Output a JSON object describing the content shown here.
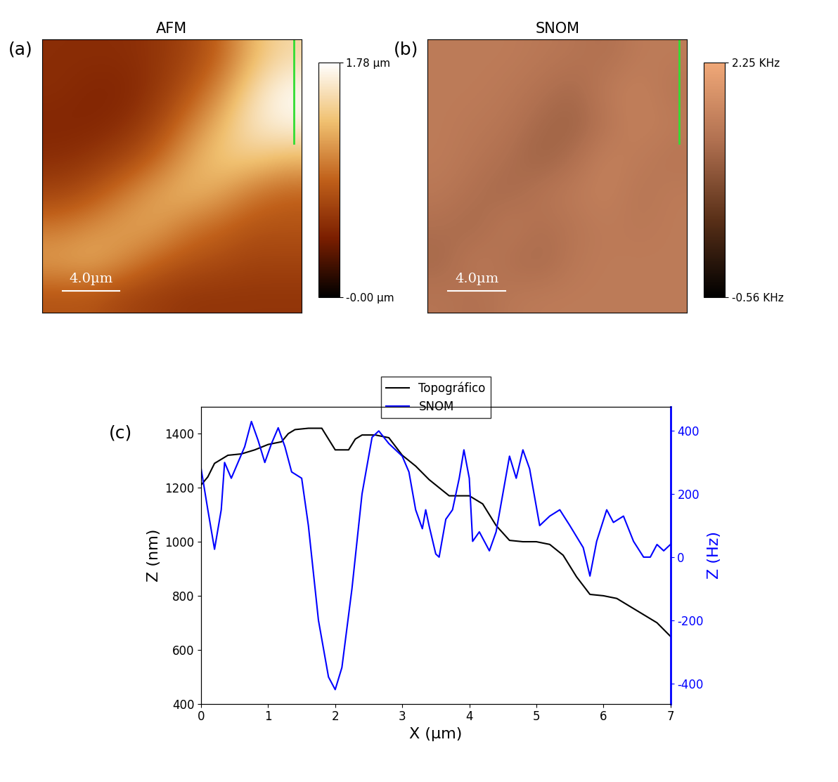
{
  "chart_data": [
    {
      "type": "heatmap",
      "panel_label": "(a)",
      "title": "AFM",
      "cells": [
        [
          0.55,
          0.55,
          0.55,
          0.6,
          0.7,
          0.9,
          1.3,
          1.5
        ],
        [
          0.55,
          0.5,
          0.5,
          0.6,
          0.8,
          1.1,
          1.5,
          1.75
        ],
        [
          0.5,
          0.5,
          0.55,
          0.7,
          1.0,
          1.3,
          1.6,
          1.7
        ],
        [
          0.55,
          0.6,
          0.7,
          0.9,
          1.2,
          1.4,
          1.4,
          1.3
        ],
        [
          0.7,
          0.8,
          1.0,
          1.2,
          1.3,
          1.2,
          1.0,
          0.9
        ],
        [
          1.0,
          1.1,
          1.2,
          1.2,
          1.0,
          0.9,
          0.8,
          0.8
        ],
        [
          1.2,
          1.25,
          1.1,
          0.9,
          0.8,
          0.75,
          0.7,
          0.7
        ],
        [
          0.8,
          0.8,
          0.7,
          0.65,
          0.6,
          0.6,
          0.6,
          0.6
        ]
      ],
      "colorbar": {
        "range": [
          0,
          1.78
        ],
        "ticks": [
          {
            "value": 0,
            "label": "-0.00 µm"
          },
          {
            "value": 1.78,
            "label": "1.78 µm"
          }
        ]
      },
      "annotations": [
        "4.0µm"
      ],
      "tick_labels": false
    },
    {
      "type": "heatmap",
      "panel_label": "(b)",
      "title": "SNOM",
      "cells": [
        [
          1.5,
          1.5,
          1.5,
          1.45,
          1.4,
          1.3,
          1.5,
          1.5
        ],
        [
          1.5,
          1.5,
          1.45,
          1.35,
          1.2,
          1.5,
          1.6,
          1.4
        ],
        [
          1.5,
          1.45,
          1.4,
          1.2,
          1.1,
          1.4,
          1.6,
          1.5
        ],
        [
          1.5,
          1.4,
          1.3,
          1.1,
          1.3,
          1.6,
          1.5,
          1.4
        ],
        [
          1.45,
          1.3,
          1.2,
          1.4,
          1.5,
          1.6,
          1.4,
          1.5
        ],
        [
          1.3,
          1.2,
          1.5,
          1.3,
          1.4,
          1.5,
          1.45,
          1.5
        ],
        [
          1.2,
          1.5,
          1.3,
          1.2,
          1.45,
          1.5,
          1.5,
          1.5
        ],
        [
          1.4,
          1.3,
          1.45,
          1.5,
          1.5,
          1.5,
          1.5,
          1.5
        ]
      ],
      "colorbar": {
        "range": [
          -0.56,
          2.25
        ],
        "ticks": [
          {
            "value": -0.56,
            "label": "-0.56 KHz"
          },
          {
            "value": 2.25,
            "label": "2.25 KHz"
          }
        ]
      },
      "annotations": [
        "4.0µm"
      ],
      "tick_labels": false
    },
    {
      "type": "line",
      "panel_label": "(c)",
      "x_label": "X (μm)",
      "y_label": "Z (nm)",
      "y2_label": "Z (Hz)",
      "xlim": [
        0,
        7
      ],
      "xticks": [
        0,
        1,
        2,
        3,
        4,
        5,
        6,
        7
      ],
      "ylim": [
        400,
        1500
      ],
      "yticks": [
        400,
        600,
        800,
        1000,
        1200,
        1400
      ],
      "y2lim": [
        -465,
        477
      ],
      "y2ticks": [
        -400,
        -200,
        0,
        200,
        400
      ],
      "legend": "upper center",
      "series": [
        {
          "name": "Topográfico",
          "color": "#000000",
          "axis": "y",
          "x": [
            0,
            0.1,
            0.2,
            0.4,
            0.6,
            0.8,
            1.0,
            1.2,
            1.3,
            1.4,
            1.6,
            1.8,
            1.9,
            2.0,
            2.2,
            2.3,
            2.4,
            2.6,
            2.8,
            3.0,
            3.2,
            3.4,
            3.6,
            3.7,
            4.0,
            4.2,
            4.4,
            4.6,
            4.8,
            5.0,
            5.2,
            5.4,
            5.6,
            5.8,
            6.0,
            6.2,
            6.4,
            6.6,
            6.8,
            7.0
          ],
          "values": [
            1210,
            1240,
            1290,
            1320,
            1325,
            1340,
            1360,
            1370,
            1400,
            1415,
            1420,
            1420,
            1380,
            1340,
            1340,
            1380,
            1395,
            1395,
            1385,
            1320,
            1280,
            1230,
            1190,
            1170,
            1170,
            1140,
            1060,
            1005,
            1000,
            1000,
            990,
            950,
            870,
            805,
            800,
            790,
            760,
            730,
            700,
            650
          ]
        },
        {
          "name": "SNOM",
          "color": "#0000ff",
          "axis": "y2",
          "x": [
            0,
            0.1,
            0.2,
            0.3,
            0.35,
            0.45,
            0.55,
            0.65,
            0.75,
            0.85,
            0.95,
            1.05,
            1.15,
            1.25,
            1.35,
            1.5,
            1.6,
            1.75,
            1.9,
            2.0,
            2.1,
            2.25,
            2.4,
            2.55,
            2.65,
            2.8,
            3.0,
            3.1,
            3.2,
            3.3,
            3.35,
            3.4,
            3.5,
            3.55,
            3.65,
            3.75,
            3.85,
            3.92,
            4.0,
            4.05,
            4.15,
            4.3,
            4.4,
            4.5,
            4.6,
            4.7,
            4.8,
            4.9,
            5.05,
            5.2,
            5.35,
            5.5,
            5.7,
            5.8,
            5.9,
            6.05,
            6.15,
            6.3,
            6.45,
            6.6,
            6.7,
            6.8,
            6.9,
            7.0
          ],
          "values": [
            280,
            150,
            25,
            150,
            300,
            250,
            300,
            350,
            430,
            370,
            300,
            360,
            410,
            350,
            270,
            250,
            100,
            -200,
            -380,
            -420,
            -350,
            -100,
            200,
            380,
            400,
            360,
            320,
            270,
            150,
            90,
            150,
            100,
            10,
            0,
            120,
            150,
            250,
            340,
            250,
            50,
            80,
            20,
            80,
            200,
            320,
            250,
            340,
            280,
            100,
            130,
            150,
            100,
            30,
            -60,
            50,
            150,
            110,
            130,
            50,
            0,
            0,
            40,
            20,
            40
          ]
        }
      ]
    }
  ]
}
